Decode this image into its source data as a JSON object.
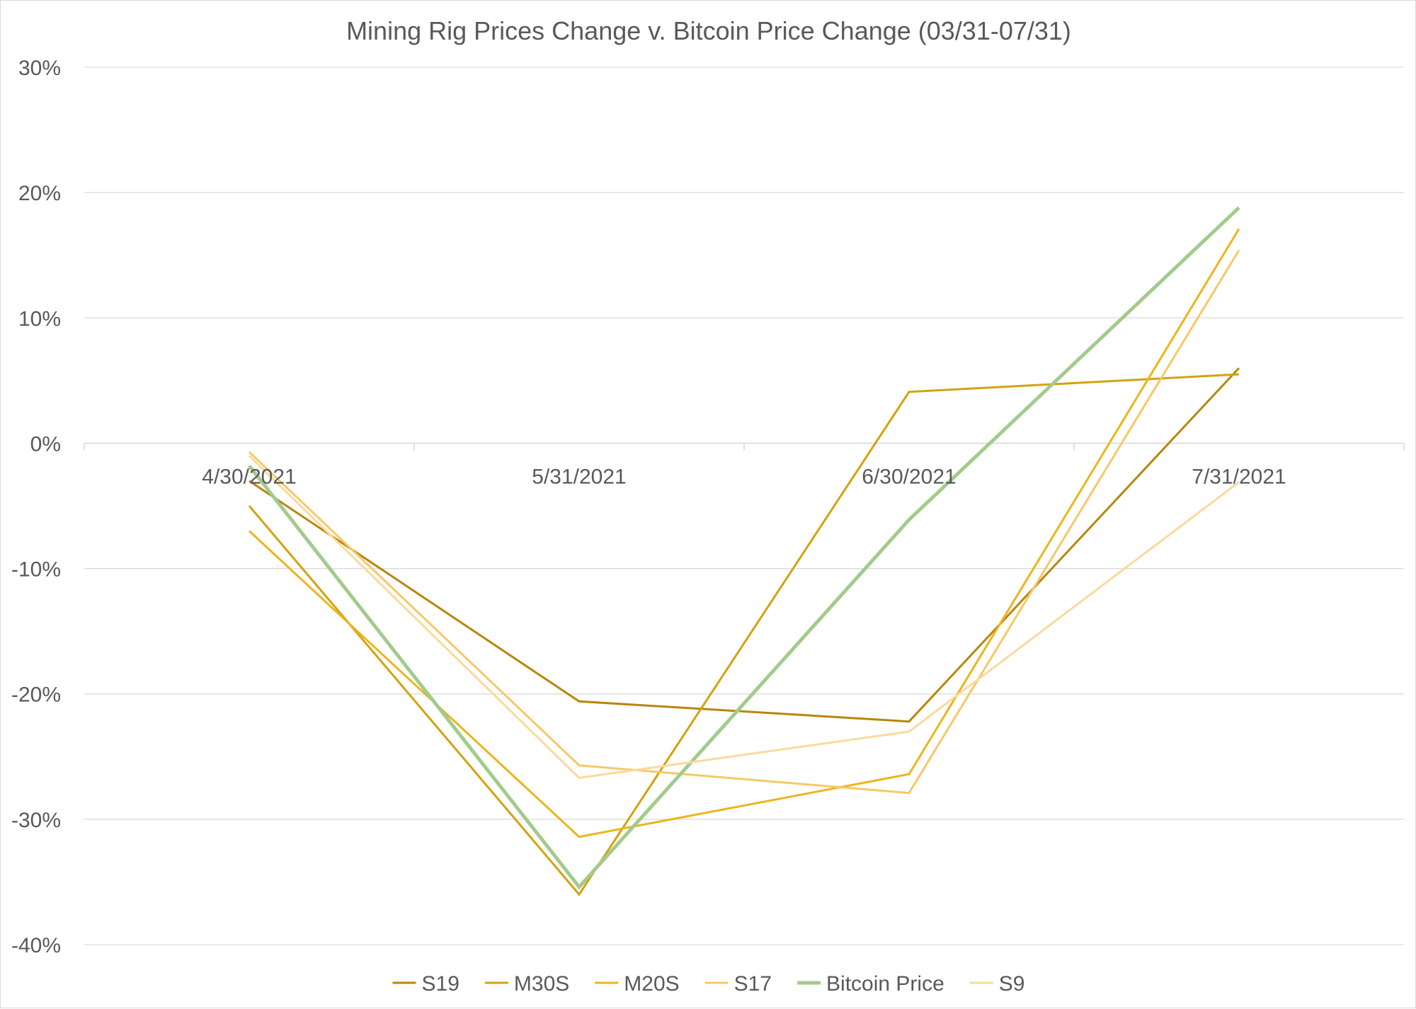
{
  "chart_data": {
    "type": "line",
    "title": "Mining Rig Prices Change v. Bitcoin Price Change (03/31-07/31)",
    "categories": [
      "4/30/2021",
      "5/31/2021",
      "6/30/2021",
      "7/31/2021"
    ],
    "ylim": [
      -40,
      30
    ],
    "yticks": [
      30,
      20,
      10,
      0,
      -10,
      -20,
      -30,
      -40
    ],
    "ytick_labels": [
      "30%",
      "20%",
      "10%",
      "0%",
      "-10%",
      "-20%",
      "-30%",
      "-40%"
    ],
    "grid": true,
    "legend_position": "bottom",
    "series": [
      {
        "name": "S19",
        "color": "#B8860B",
        "width": 3,
        "values": [
          -3.0,
          -20.6,
          -22.2,
          6.0
        ]
      },
      {
        "name": "M30S",
        "color": "#D4A20E",
        "width": 3,
        "values": [
          -5.0,
          -36.0,
          4.1,
          5.5
        ]
      },
      {
        "name": "M20S",
        "color": "#EDB51B",
        "width": 3,
        "values": [
          -7.0,
          -31.4,
          -26.4,
          17.1
        ]
      },
      {
        "name": "S17",
        "color": "#F7C867",
        "width": 3,
        "values": [
          -0.7,
          -25.7,
          -27.9,
          15.4
        ]
      },
      {
        "name": "Bitcoin Price",
        "color": "#A3CB8C",
        "width": 5,
        "values": [
          -1.8,
          -35.4,
          -6.1,
          18.8
        ]
      },
      {
        "name": "S9",
        "color": "#FADA9C",
        "width": 3,
        "values": [
          -1.0,
          -26.7,
          -23.0,
          -3.1
        ]
      }
    ]
  }
}
